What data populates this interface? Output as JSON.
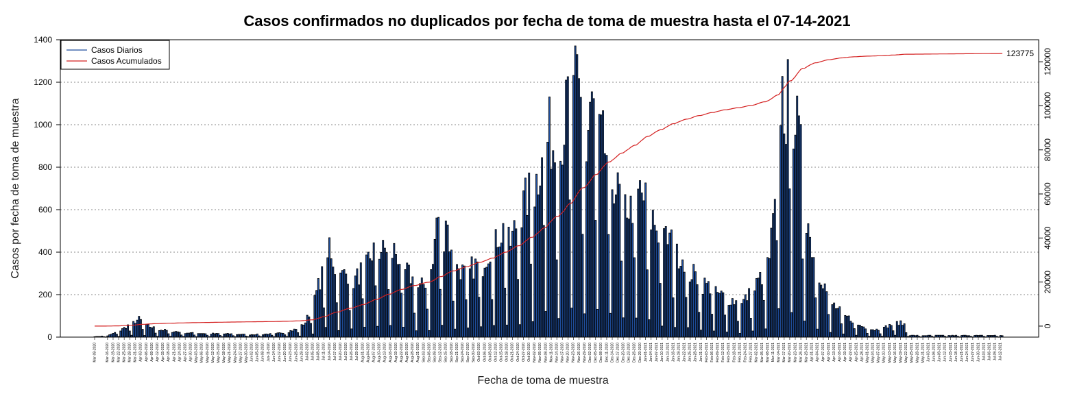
{
  "chart_data": {
    "type": "bar",
    "title": "Casos confirmados no duplicados por fecha de toma de muestra hasta el 07-14-2021",
    "xlabel": "Fecha de toma de muestra",
    "ylabel": "Casos por fecha de toma de muestra",
    "ylim": [
      0,
      1400
    ],
    "y_ticks": [
      0,
      200,
      400,
      600,
      800,
      1000,
      1200,
      1400
    ],
    "y2lim": [
      -5000,
      130000
    ],
    "y2_ticks": [
      0,
      20000,
      40000,
      60000,
      80000,
      100000,
      120000
    ],
    "grid": "horizontal-dotted",
    "legend_position": "top-left",
    "start_date": "2020-03-09",
    "end_date": "2021-07-13",
    "final_cumulative_label": "123775",
    "tick_labels": [
      "Mar-09-2020",
      "Mar-16-2020",
      "Mar-19-2020",
      "Mar-22-2020",
      "Mar-25-2020",
      "Mar-28-2020",
      "Mar-31-2020",
      "Apr-03-2020",
      "Apr-06-2020",
      "Apr-09-2020",
      "Apr-12-2020",
      "Apr-15-2020",
      "Apr-18-2020",
      "Apr-21-2020",
      "Apr-24-2020",
      "Apr-27-2020",
      "Apr-30-2020",
      "May-03-2020",
      "May-06-2020",
      "May-09-2020",
      "May-12-2020",
      "May-15-2020",
      "May-18-2020",
      "May-21-2020",
      "May-24-2020",
      "May-27-2020",
      "May-30-2020",
      "Jun-02-2020",
      "Jun-05-2020",
      "Jun-08-2020",
      "Jun-11-2020",
      "Jun-14-2020",
      "Jun-17-2020",
      "Jun-20-2020",
      "Jun-23-2020",
      "Jun-26-2020",
      "Jun-29-2020",
      "Jul-02-2020",
      "Jul-05-2020",
      "Jul-08-2020",
      "Jul-11-2020",
      "Jul-14-2020",
      "Jul-17-2020",
      "Jul-20-2020",
      "Jul-23-2020",
      "Jul-26-2020",
      "Jul-29-2020",
      "Aug-01-2020",
      "Aug-04-2020",
      "Aug-07-2020",
      "Aug-10-2020",
      "Aug-13-2020",
      "Aug-16-2020",
      "Aug-19-2020",
      "Aug-22-2020",
      "Aug-25-2020",
      "Aug-28-2020",
      "Aug-31-2020",
      "Sep-03-2020",
      "Sep-06-2020",
      "Sep-09-2020",
      "Sep-12-2020",
      "Sep-15-2020",
      "Sep-18-2020",
      "Sep-21-2020",
      "Sep-24-2020",
      "Sep-27-2020",
      "Sep-30-2020",
      "Oct-03-2020",
      "Oct-06-2020",
      "Oct-09-2020",
      "Oct-12-2020",
      "Oct-15-2020",
      "Oct-18-2020",
      "Oct-21-2020",
      "Oct-24-2020",
      "Oct-27-2020",
      "Oct-30-2020",
      "Nov-02-2020",
      "Nov-05-2020",
      "Nov-08-2020",
      "Nov-11-2020",
      "Nov-14-2020",
      "Nov-17-2020",
      "Nov-20-2020",
      "Nov-23-2020",
      "Nov-26-2020",
      "Nov-29-2020",
      "Dec-02-2020",
      "Dec-05-2020",
      "Dec-08-2020",
      "Dec-11-2020",
      "Dec-14-2020",
      "Dec-17-2020",
      "Dec-20-2020",
      "Dec-23-2020",
      "Dec-26-2020",
      "Dec-29-2020",
      "Jan-01-2021",
      "Jan-04-2021",
      "Jan-07-2021",
      "Jan-10-2021",
      "Jan-13-2021",
      "Jan-16-2021",
      "Jan-19-2021",
      "Jan-22-2021",
      "Jan-25-2021",
      "Jan-28-2021",
      "Jan-31-2021",
      "Feb-03-2021",
      "Feb-06-2021",
      "Feb-09-2021",
      "Feb-12-2021",
      "Feb-15-2021",
      "Feb-18-2021",
      "Feb-21-2021",
      "Feb-24-2021",
      "Feb-27-2021",
      "Mar-02-2021",
      "Mar-05-2021",
      "Mar-08-2021",
      "Mar-11-2021",
      "Mar-14-2021",
      "Mar-17-2021",
      "Mar-20-2021",
      "Mar-23-2021",
      "Mar-26-2021",
      "Mar-29-2021",
      "Apr-01-2021",
      "Apr-04-2021",
      "Apr-07-2021",
      "Apr-10-2021",
      "Apr-13-2021",
      "Apr-16-2021",
      "Apr-19-2021",
      "Apr-22-2021",
      "Apr-25-2021",
      "Apr-28-2021",
      "May-01-2021",
      "May-04-2021",
      "May-07-2021",
      "May-10-2021",
      "May-13-2021",
      "May-16-2021",
      "May-19-2021",
      "May-22-2021",
      "May-25-2021",
      "May-28-2021",
      "May-31-2021",
      "Jun-03-2021",
      "Jun-06-2021",
      "Jun-09-2021",
      "Jun-12-2021",
      "Jun-15-2021",
      "Jun-18-2021",
      "Jun-21-2021",
      "Jun-24-2021",
      "Jun-27-2021",
      "Jun-30-2021",
      "Jul-03-2021",
      "Jul-06-2021",
      "Jul-09-2021",
      "Jul-12-2021"
    ],
    "anchors": [
      [
        0,
        2
      ],
      [
        7,
        6
      ],
      [
        14,
        32
      ],
      [
        20,
        65
      ],
      [
        24,
        85
      ],
      [
        28,
        55
      ],
      [
        35,
        35
      ],
      [
        42,
        28
      ],
      [
        50,
        20
      ],
      [
        58,
        18
      ],
      [
        66,
        16
      ],
      [
        74,
        15
      ],
      [
        82,
        12
      ],
      [
        90,
        13
      ],
      [
        98,
        16
      ],
      [
        104,
        25
      ],
      [
        110,
        40
      ],
      [
        114,
        70
      ],
      [
        118,
        150
      ],
      [
        122,
        270
      ],
      [
        125,
        330
      ],
      [
        127,
        440
      ],
      [
        130,
        330
      ],
      [
        133,
        290
      ],
      [
        137,
        300
      ],
      [
        141,
        270
      ],
      [
        145,
        320
      ],
      [
        149,
        380
      ],
      [
        153,
        440
      ],
      [
        156,
        400
      ],
      [
        159,
        430
      ],
      [
        163,
        400
      ],
      [
        168,
        320
      ],
      [
        172,
        270
      ],
      [
        176,
        230
      ],
      [
        180,
        270
      ],
      [
        183,
        340
      ],
      [
        185,
        560
      ],
      [
        188,
        430
      ],
      [
        190,
        590
      ],
      [
        193,
        380
      ],
      [
        196,
        340
      ],
      [
        200,
        300
      ],
      [
        205,
        330
      ],
      [
        210,
        360
      ],
      [
        215,
        430
      ],
      [
        219,
        490
      ],
      [
        222,
        510
      ],
      [
        225,
        440
      ],
      [
        229,
        560
      ],
      [
        233,
        640
      ],
      [
        237,
        700
      ],
      [
        240,
        760
      ],
      [
        243,
        1000
      ],
      [
        246,
        960
      ],
      [
        249,
        880
      ],
      [
        252,
        900
      ],
      [
        255,
        1050
      ],
      [
        257,
        1180
      ],
      [
        259,
        1150
      ],
      [
        261,
        1200
      ],
      [
        263,
        1100
      ],
      [
        266,
        870
      ],
      [
        268,
        1080
      ],
      [
        271,
        1050
      ],
      [
        274,
        930
      ],
      [
        277,
        860
      ],
      [
        280,
        770
      ],
      [
        283,
        680
      ],
      [
        287,
        640
      ],
      [
        290,
        600
      ],
      [
        294,
        700
      ],
      [
        298,
        640
      ],
      [
        302,
        560
      ],
      [
        305,
        500
      ],
      [
        308,
        470
      ],
      [
        311,
        460
      ],
      [
        315,
        400
      ],
      [
        319,
        370
      ],
      [
        322,
        310
      ],
      [
        326,
        280
      ],
      [
        330,
        250
      ],
      [
        334,
        230
      ],
      [
        338,
        200
      ],
      [
        342,
        190
      ],
      [
        346,
        170
      ],
      [
        350,
        160
      ],
      [
        354,
        200
      ],
      [
        358,
        250
      ],
      [
        362,
        300
      ],
      [
        365,
        380
      ],
      [
        368,
        600
      ],
      [
        371,
        1180
      ],
      [
        374,
        1050
      ],
      [
        376,
        1200
      ],
      [
        378,
        1100
      ],
      [
        381,
        920
      ],
      [
        383,
        800
      ],
      [
        385,
        620
      ],
      [
        387,
        460
      ],
      [
        389,
        400
      ],
      [
        392,
        320
      ],
      [
        395,
        240
      ],
      [
        398,
        170
      ],
      [
        402,
        130
      ],
      [
        406,
        100
      ],
      [
        410,
        80
      ],
      [
        414,
        55
      ],
      [
        418,
        42
      ],
      [
        422,
        35
      ],
      [
        426,
        40
      ],
      [
        430,
        55
      ],
      [
        434,
        70
      ],
      [
        438,
        60
      ],
      [
        441,
        8
      ]
    ],
    "cumulative_key_points": [
      [
        "Mar-09-2020",
        0
      ],
      [
        "Jun-24-2020",
        2000
      ],
      [
        "Aug-28-2020",
        20000
      ],
      [
        "Oct-27-2020",
        40000
      ],
      [
        "Nov-26-2020",
        60000
      ],
      [
        "Jan-01-2021",
        80000
      ],
      [
        "Mar-30-2021",
        100000
      ],
      [
        "May-07-2021",
        120000
      ],
      [
        "Jul-13-2021",
        123775
      ]
    ],
    "series": [
      {
        "name": "Casos Diarios",
        "color": "#1f4e9c",
        "outline": "#000000"
      },
      {
        "name": "Casos Acumulados",
        "color": "#d42020"
      }
    ]
  }
}
